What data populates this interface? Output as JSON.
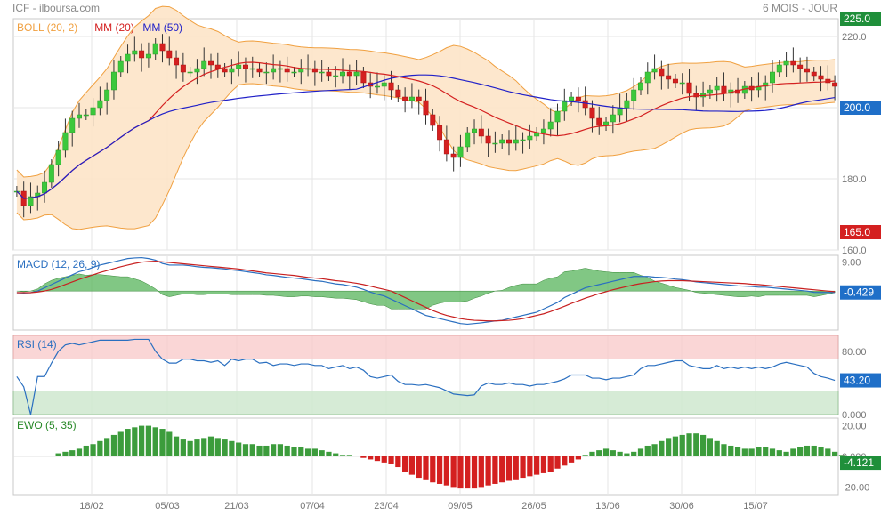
{
  "header": {
    "title": "ICF - ilboursa.com",
    "period": "6 MOIS - JOUR"
  },
  "chart_data": [
    {
      "type": "candlestick",
      "panel": "price",
      "legend": [
        {
          "name": "BOLL (20, 2)",
          "color": "#f0a040"
        },
        {
          "name": "MM (20)",
          "color": "#d42020"
        },
        {
          "name": "MM (50)",
          "color": "#2020c8"
        }
      ],
      "x_tick_labels": [
        "18/02",
        "05/03",
        "21/03",
        "07/04",
        "23/04",
        "09/05",
        "26/05",
        "13/06",
        "30/06",
        "15/07"
      ],
      "y_ticks": [
        160,
        180,
        200,
        220
      ],
      "y_tick_labels": [
        "160.0",
        "180.0",
        "200.0",
        "220.0"
      ],
      "ylim": [
        160,
        225
      ],
      "value_tags": [
        {
          "label": "225.0",
          "value": 225,
          "color": "#1f8f3a"
        },
        {
          "label": "200.0",
          "value": 200,
          "color": "#1f6fc8"
        },
        {
          "label": "165.0",
          "value": 165,
          "color": "#d42020"
        }
      ],
      "close": [
        176.5,
        172.5,
        175,
        176,
        179,
        184,
        188,
        193,
        197,
        198,
        198,
        200,
        202,
        205,
        210,
        213,
        215,
        216,
        214,
        215,
        218,
        216,
        214,
        212,
        210,
        210,
        211,
        213,
        212,
        211,
        210,
        211,
        212,
        211,
        211,
        210,
        210,
        211,
        211,
        210,
        210,
        211,
        211,
        210,
        210,
        209,
        209,
        210,
        209,
        210,
        207,
        206,
        206,
        207,
        205,
        203,
        202,
        203,
        202,
        198,
        195,
        191,
        187,
        186,
        189,
        193,
        194,
        192,
        190,
        190,
        191,
        190,
        191,
        191,
        192,
        193,
        194,
        196,
        199,
        202,
        203,
        202,
        200,
        197,
        195,
        196,
        198,
        200,
        202,
        205,
        207,
        210,
        211,
        209,
        208,
        207,
        207,
        204,
        203,
        204,
        205,
        206,
        204,
        205,
        204,
        206,
        205,
        206,
        207,
        210,
        212,
        213,
        212,
        211,
        210,
        209,
        208,
        207,
        206
      ]
    },
    {
      "type": "line",
      "panel": "macd",
      "title": "MACD (12, 26, 9)",
      "y_ticks": [
        9
      ],
      "y_tick_labels": [
        "9.00"
      ],
      "ylim": [
        -12,
        11
      ],
      "value_tags": [
        {
          "label": "-0.429",
          "value": -0.429,
          "color": "#1f6fc8"
        }
      ],
      "series": [
        {
          "color": "#2a6fc0",
          "values": [
            -0.5,
            -0.6,
            -0.5,
            0,
            1,
            2,
            3,
            4,
            5,
            6,
            6.5,
            7.3,
            8,
            8.5,
            9,
            9.5,
            10,
            10.2,
            10.3,
            10,
            9.5,
            8.5,
            8,
            8,
            8,
            7.8,
            7.5,
            7.3,
            7.2,
            7,
            6.8,
            6.5,
            6.3,
            6,
            5.7,
            5.4,
            5,
            4.8,
            4.5,
            4.2,
            4,
            3.8,
            3.5,
            3.2,
            3,
            2.6,
            2.2,
            2,
            1.6,
            1.2,
            0.5,
            -0.3,
            -1,
            -1.5,
            -2.5,
            -3.5,
            -4.5,
            -5.5,
            -6.5,
            -7.5,
            -8,
            -8.5,
            -9,
            -9.5,
            -10,
            -10.2,
            -10,
            -9.8,
            -9.5,
            -9.2,
            -9,
            -8.5,
            -8,
            -7.5,
            -7,
            -6.5,
            -5.5,
            -4.5,
            -3.5,
            -2,
            -1,
            0,
            1,
            1.5,
            2,
            2.5,
            3,
            3.5,
            4,
            4.5,
            4.5,
            4.5,
            4.3,
            4.2,
            4,
            3.7,
            3.5,
            3.2,
            2.8,
            2.6,
            2.4,
            2.2,
            2,
            1.8,
            1.6,
            1.5,
            1.4,
            1.2,
            1.2,
            1,
            0.8,
            0.6,
            0.4,
            0.2,
            0,
            -0.4,
            -0.429,
            -0.43,
            -0.43
          ]
        },
        {
          "color": "#c82020",
          "values": [
            -0.5,
            -0.5,
            -0.5,
            -0.3,
            0,
            0.5,
            1.2,
            2,
            2.8,
            3.6,
            4.3,
            5,
            5.7,
            6.3,
            6.9,
            7.5,
            8,
            8.5,
            8.9,
            9.1,
            9.2,
            9,
            8.8,
            8.6,
            8.4,
            8.2,
            8,
            7.8,
            7.6,
            7.4,
            7.2,
            7,
            6.8,
            6.5,
            6.2,
            5.9,
            5.6,
            5.4,
            5.2,
            5,
            4.8,
            4.5,
            4.2,
            4,
            3.8,
            3.5,
            3.2,
            3,
            2.7,
            2.4,
            2,
            1.5,
            1,
            0.5,
            0,
            -1,
            -2,
            -3,
            -4,
            -5,
            -6,
            -6.8,
            -7.5,
            -8,
            -8.5,
            -8.8,
            -9,
            -9.1,
            -9.2,
            -9.2,
            -9.1,
            -9,
            -8.8,
            -8.5,
            -8,
            -7.5,
            -7,
            -6.3,
            -5.5,
            -4.7,
            -3.8,
            -3,
            -2.2,
            -1.5,
            -0.8,
            -0.2,
            0.4,
            0.9,
            1.4,
            1.9,
            2.3,
            2.6,
            2.9,
            3.1,
            3.2,
            3.2,
            3.2,
            3.1,
            3,
            2.9,
            2.8,
            2.7,
            2.6,
            2.5,
            2.4,
            2.3,
            2.1,
            2,
            1.8,
            1.6,
            1.4,
            1.2,
            1,
            0.8,
            0.6,
            0.4,
            0.2,
            0,
            -0.2
          ]
        }
      ]
    },
    {
      "type": "line",
      "panel": "rsi",
      "title": "RSI (14)",
      "y_ticks": [
        80,
        0
      ],
      "y_tick_labels": [
        "80.00",
        "0.000"
      ],
      "ylim": [
        0,
        100
      ],
      "bands": {
        "overbought": 70,
        "oversold": 30
      },
      "value_tags": [
        {
          "label": "43.20",
          "value": 43.2,
          "color": "#1f6fc8"
        }
      ],
      "values": [
        48,
        35,
        0,
        48,
        48,
        65,
        80,
        88,
        90,
        88,
        90,
        92,
        94,
        94,
        94,
        94,
        94,
        95,
        95,
        95,
        80,
        70,
        65,
        65,
        70,
        70,
        68,
        68,
        66,
        68,
        62,
        70,
        68,
        70,
        70,
        65,
        66,
        62,
        64,
        64,
        62,
        64,
        64,
        62,
        62,
        58,
        60,
        62,
        58,
        60,
        56,
        48,
        46,
        48,
        50,
        42,
        38,
        38,
        37,
        38,
        36,
        34,
        30,
        26,
        25,
        24,
        25,
        36,
        40,
        38,
        38,
        40,
        38,
        38,
        36,
        38,
        38,
        40,
        42,
        45,
        50,
        50,
        50,
        46,
        46,
        44,
        46,
        46,
        48,
        50,
        58,
        62,
        62,
        64,
        66,
        68,
        68,
        62,
        60,
        58,
        58,
        62,
        58,
        60,
        58,
        60,
        58,
        60,
        58,
        60,
        64,
        66,
        64,
        62,
        60,
        52,
        48,
        46,
        43.2
      ]
    },
    {
      "type": "bar",
      "panel": "ewo",
      "title": "EWO (5, 35)",
      "y_ticks": [
        20,
        0,
        -20
      ],
      "y_tick_labels": [
        "20.00",
        "0.000",
        "-20.00"
      ],
      "ylim": [
        -25,
        25
      ],
      "value_tags": [
        {
          "label": "-4.121",
          "value": -4.121,
          "color": "#1f8f3a"
        }
      ],
      "values": [
        0,
        0,
        0,
        0,
        0,
        0,
        2,
        3,
        4,
        5,
        7,
        8,
        10,
        12,
        14,
        16,
        18,
        19,
        20,
        20,
        19,
        18,
        16,
        13,
        11,
        10,
        11,
        12,
        13,
        12,
        11,
        10,
        9,
        8,
        8,
        7,
        7,
        8,
        8,
        7,
        6,
        6,
        5,
        5,
        4,
        3,
        2,
        1,
        1,
        0,
        -1,
        -2,
        -3,
        -4,
        -5,
        -7,
        -10,
        -12,
        -14,
        -15,
        -17,
        -18,
        -19,
        -20,
        -21,
        -21,
        -21,
        -20,
        -19,
        -18,
        -17,
        -16,
        -15,
        -14,
        -13,
        -12,
        -11,
        -10,
        -8,
        -6,
        -4,
        -2,
        1,
        3,
        4,
        5,
        4,
        3,
        2,
        3,
        5,
        7,
        8,
        10,
        12,
        13,
        14,
        15,
        15,
        14,
        12,
        10,
        8,
        7,
        6,
        5,
        5,
        6,
        6,
        5,
        4,
        3,
        5,
        6,
        7,
        7,
        6,
        5,
        3,
        1,
        -2,
        -4.121
      ]
    },
    {
      "type": "axis",
      "panel": "x_axis",
      "tick_labels": [
        "18/02",
        "05/03",
        "21/03",
        "07/04",
        "23/04",
        "09/05",
        "26/05",
        "13/06",
        "30/06",
        "15/07"
      ]
    }
  ]
}
